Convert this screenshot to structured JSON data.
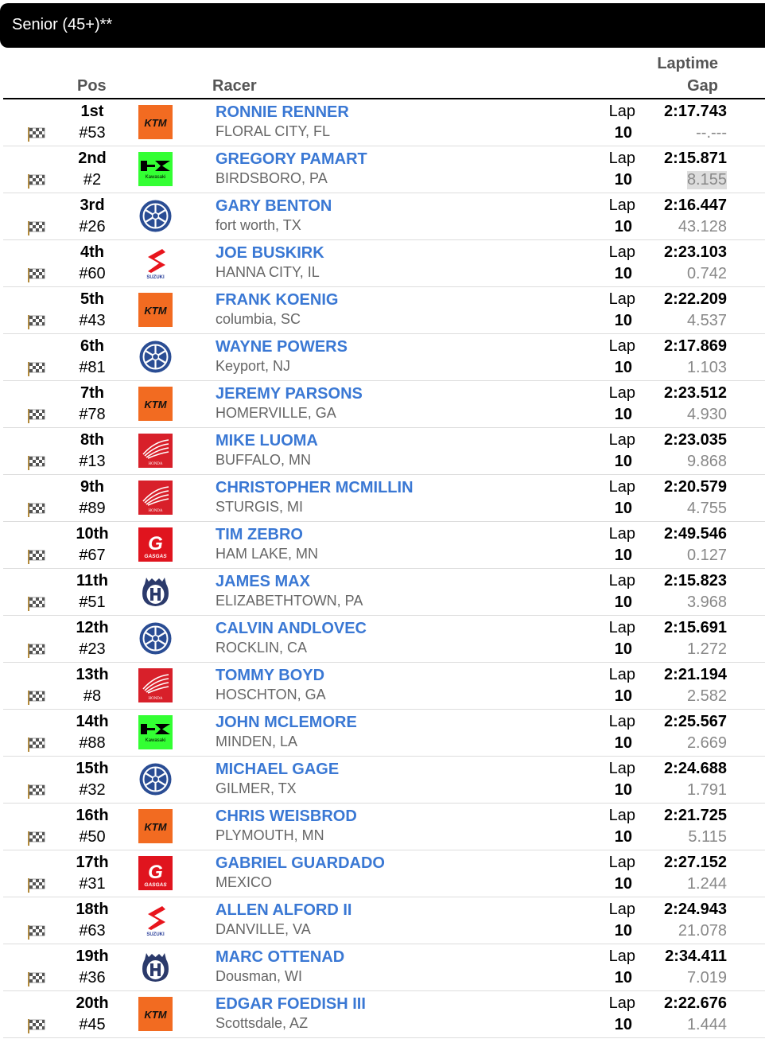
{
  "class_title": "Senior (45+)**",
  "headers": {
    "pos": "Pos",
    "racer": "Racer",
    "laptime": "Laptime",
    "gap": "Gap"
  },
  "lap_label": "Lap",
  "colors": {
    "link": "#3a78d4",
    "title_bar": "#000000",
    "gap": "#888888"
  },
  "rows": [
    {
      "place": "1st",
      "number": "#53",
      "brand": "ktm",
      "name": "RONNIE RENNER",
      "location": "FLORAL CITY, FL",
      "lap": "10",
      "laptime": "2:17.743",
      "gap": "--.---"
    },
    {
      "place": "2nd",
      "number": "#2",
      "brand": "kawasaki",
      "name": "GREGORY PAMART",
      "location": "BIRDSBORO, PA",
      "lap": "10",
      "laptime": "2:15.871",
      "gap": "8.155",
      "gap_highlighted": true
    },
    {
      "place": "3rd",
      "number": "#26",
      "brand": "yamaha",
      "name": "GARY BENTON",
      "location": "fort worth, TX",
      "lap": "10",
      "laptime": "2:16.447",
      "gap": "43.128"
    },
    {
      "place": "4th",
      "number": "#60",
      "brand": "suzuki",
      "name": "JOE BUSKIRK",
      "location": "HANNA CITY, IL",
      "lap": "10",
      "laptime": "2:23.103",
      "gap": "0.742"
    },
    {
      "place": "5th",
      "number": "#43",
      "brand": "ktm",
      "name": "FRANK KOENIG",
      "location": "columbia, SC",
      "lap": "10",
      "laptime": "2:22.209",
      "gap": "4.537"
    },
    {
      "place": "6th",
      "number": "#81",
      "brand": "yamaha",
      "name": "WAYNE POWERS",
      "location": "Keyport, NJ",
      "lap": "10",
      "laptime": "2:17.869",
      "gap": "1.103"
    },
    {
      "place": "7th",
      "number": "#78",
      "brand": "ktm",
      "name": "JEREMY PARSONS",
      "location": "HOMERVILLE, GA",
      "lap": "10",
      "laptime": "2:23.512",
      "gap": "4.930"
    },
    {
      "place": "8th",
      "number": "#13",
      "brand": "honda",
      "name": "MIKE LUOMA",
      "location": "BUFFALO, MN",
      "lap": "10",
      "laptime": "2:23.035",
      "gap": "9.868"
    },
    {
      "place": "9th",
      "number": "#89",
      "brand": "honda",
      "name": "CHRISTOPHER MCMILLIN",
      "location": "STURGIS, MI",
      "lap": "10",
      "laptime": "2:20.579",
      "gap": "4.755"
    },
    {
      "place": "10th",
      "number": "#67",
      "brand": "gasgas",
      "name": "TIM ZEBRO",
      "location": "HAM LAKE, MN",
      "lap": "10",
      "laptime": "2:49.546",
      "gap": "0.127"
    },
    {
      "place": "11th",
      "number": "#51",
      "brand": "husqvarna",
      "name": "JAMES MAX",
      "location": "ELIZABETHTOWN, PA",
      "lap": "10",
      "laptime": "2:15.823",
      "gap": "3.968"
    },
    {
      "place": "12th",
      "number": "#23",
      "brand": "yamaha",
      "name": "CALVIN ANDLOVEC",
      "location": "ROCKLIN, CA",
      "lap": "10",
      "laptime": "2:15.691",
      "gap": "1.272"
    },
    {
      "place": "13th",
      "number": "#8",
      "brand": "honda",
      "name": "TOMMY BOYD",
      "location": "HOSCHTON, GA",
      "lap": "10",
      "laptime": "2:21.194",
      "gap": "2.582"
    },
    {
      "place": "14th",
      "number": "#88",
      "brand": "kawasaki",
      "name": "JOHN MCLEMORE",
      "location": "MINDEN, LA",
      "lap": "10",
      "laptime": "2:25.567",
      "gap": "2.669"
    },
    {
      "place": "15th",
      "number": "#32",
      "brand": "yamaha",
      "name": "MICHAEL GAGE",
      "location": "GILMER, TX",
      "lap": "10",
      "laptime": "2:24.688",
      "gap": "1.791"
    },
    {
      "place": "16th",
      "number": "#50",
      "brand": "ktm",
      "name": "CHRIS WEISBROD",
      "location": "PLYMOUTH, MN",
      "lap": "10",
      "laptime": "2:21.725",
      "gap": "5.115"
    },
    {
      "place": "17th",
      "number": "#31",
      "brand": "gasgas",
      "name": "GABRIEL GUARDADO",
      "location": "MEXICO",
      "lap": "10",
      "laptime": "2:27.152",
      "gap": "1.244"
    },
    {
      "place": "18th",
      "number": "#63",
      "brand": "suzuki",
      "name": "ALLEN ALFORD II",
      "location": "DANVILLE, VA",
      "lap": "10",
      "laptime": "2:24.943",
      "gap": "21.078"
    },
    {
      "place": "19th",
      "number": "#36",
      "brand": "husqvarna",
      "name": "MARC OTTENAD",
      "location": "Dousman, WI",
      "lap": "10",
      "laptime": "2:34.411",
      "gap": "7.019"
    },
    {
      "place": "20th",
      "number": "#45",
      "brand": "ktm",
      "name": "EDGAR FOEDISH III",
      "location": "Scottsdale, AZ",
      "lap": "10",
      "laptime": "2:22.676",
      "gap": "1.444"
    }
  ]
}
